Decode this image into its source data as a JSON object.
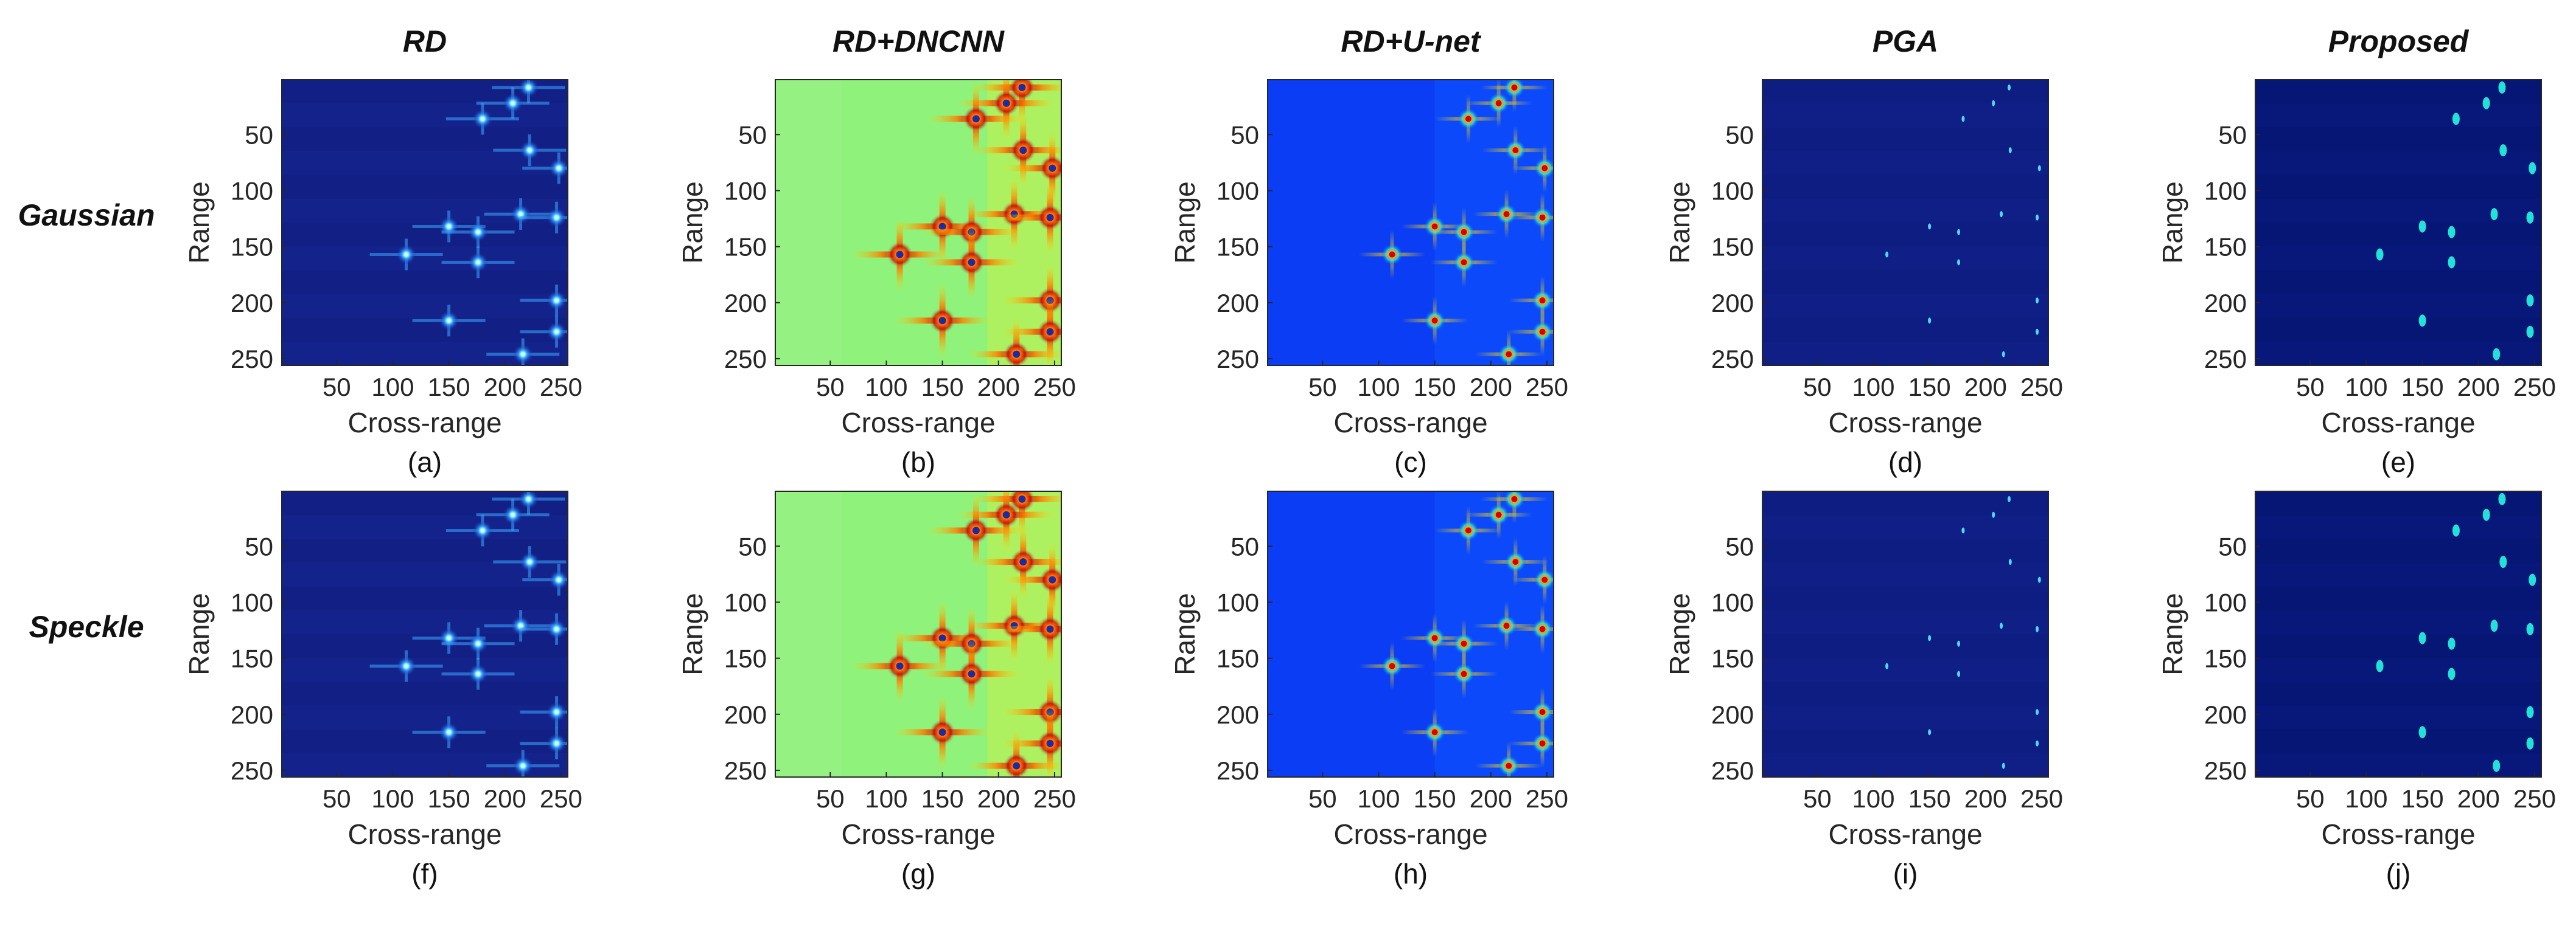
{
  "figure": {
    "column_titles": [
      "RD",
      "RD+DNCNN",
      "RD+U-net",
      "PGA",
      "Proposed"
    ],
    "row_labels": [
      "Gaussian",
      "Speckle"
    ],
    "captions": [
      "(a)",
      "(b)",
      "(c)",
      "(d)",
      "(e)",
      "(f)",
      "(g)",
      "(h)",
      "(i)",
      "(j)"
    ]
  },
  "chart_data": {
    "type": "heatmap",
    "xlabel": "Cross-range",
    "ylabel": "Range",
    "xlim": [
      1,
      256
    ],
    "ylim": [
      256,
      1
    ],
    "xticks": [
      50,
      100,
      150,
      200,
      250
    ],
    "yticks": [
      50,
      100,
      150,
      200,
      250
    ],
    "grid": false,
    "colormap": "jet",
    "scatterers": [
      {
        "x": 221,
        "y": 8
      },
      {
        "x": 207,
        "y": 22
      },
      {
        "x": 180,
        "y": 36
      },
      {
        "x": 222,
        "y": 64
      },
      {
        "x": 248,
        "y": 80
      },
      {
        "x": 214,
        "y": 121
      },
      {
        "x": 246,
        "y": 124
      },
      {
        "x": 150,
        "y": 132
      },
      {
        "x": 176,
        "y": 137
      },
      {
        "x": 112,
        "y": 157
      },
      {
        "x": 176,
        "y": 164
      },
      {
        "x": 246,
        "y": 198
      },
      {
        "x": 150,
        "y": 216
      },
      {
        "x": 246,
        "y": 226
      },
      {
        "x": 216,
        "y": 246
      }
    ],
    "panels": [
      {
        "caption": "(a)",
        "method": "RD",
        "noise": "Gaussian",
        "style": "rd"
      },
      {
        "caption": "(b)",
        "method": "RD+DNCNN",
        "noise": "Gaussian",
        "style": "dncnn"
      },
      {
        "caption": "(c)",
        "method": "RD+U-net",
        "noise": "Gaussian",
        "style": "unet"
      },
      {
        "caption": "(d)",
        "method": "PGA",
        "noise": "Gaussian",
        "style": "pga"
      },
      {
        "caption": "(e)",
        "method": "Proposed",
        "noise": "Gaussian",
        "style": "proposed"
      },
      {
        "caption": "(f)",
        "method": "RD",
        "noise": "Speckle",
        "style": "rd"
      },
      {
        "caption": "(g)",
        "method": "RD+DNCNN",
        "noise": "Speckle",
        "style": "dncnn"
      },
      {
        "caption": "(h)",
        "method": "RD+U-net",
        "noise": "Speckle",
        "style": "unet"
      },
      {
        "caption": "(i)",
        "method": "PGA",
        "noise": "Speckle",
        "style": "pga"
      },
      {
        "caption": "(j)",
        "method": "Proposed",
        "noise": "Speckle",
        "style": "proposed"
      }
    ]
  }
}
